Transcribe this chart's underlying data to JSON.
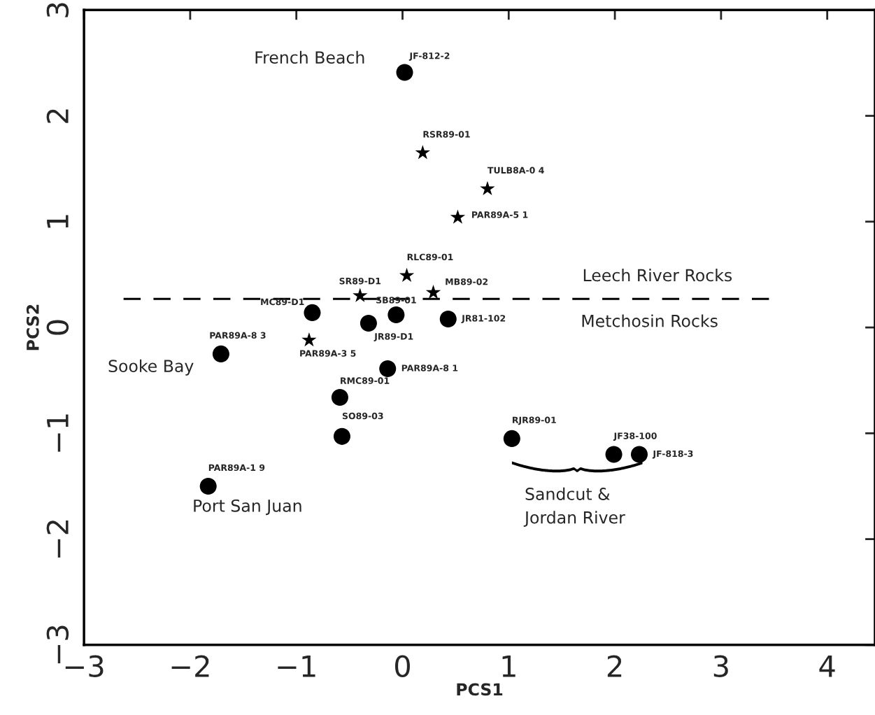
{
  "chart_data": {
    "type": "scatter",
    "xlabel": "PCS1",
    "ylabel": "PCS2",
    "xlim": [
      -3,
      4.45
    ],
    "ylim": [
      -3,
      3
    ],
    "xticks": [
      -3,
      -2,
      -1,
      0,
      1,
      2,
      3,
      4
    ],
    "yticks": [
      -3,
      -2,
      -1,
      0,
      1,
      2,
      3
    ],
    "grid": false,
    "legend": false,
    "series": [
      {
        "color": "#000000",
        "marker": "circle",
        "x": [
          0.02,
          -0.85,
          -0.06,
          -0.32,
          0.43,
          -1.71,
          -0.14,
          -0.59,
          -0.57,
          1.03,
          1.99,
          2.23,
          -1.83
        ],
        "values": [
          2.41,
          0.14,
          0.12,
          0.04,
          0.08,
          -0.25,
          -0.39,
          -0.66,
          -1.03,
          -1.05,
          -1.2,
          -1.2,
          -1.5
        ],
        "value_labels": [
          "JF-812-2",
          "MC89-D1",
          "SB89-01",
          "JR89-D1",
          "JR81-102",
          "PAR89A-8 3",
          "PAR89A-8 1",
          "RMC89-01",
          "SO89-03",
          "RJR89-01",
          "JF38-100",
          "JF-818-3",
          "PAR89A-1 9"
        ]
      },
      {
        "color": "#000000",
        "marker": "star",
        "x": [
          0.19,
          0.8,
          0.52,
          0.04,
          -0.4,
          0.29,
          -0.88
        ],
        "values": [
          1.65,
          1.31,
          1.04,
          0.49,
          0.3,
          0.33,
          -0.12
        ],
        "value_labels": [
          "RSR89-01",
          "TULB8A-0 4",
          "PAR89A-5 1",
          "RLC89-01",
          "SR89-D1",
          "MB89-02",
          "PAR89A-3 5"
        ]
      }
    ],
    "ref_lines": [
      {
        "axis": "y",
        "value": 0.27,
        "line_style": "dashed",
        "color": "#000000"
      }
    ],
    "annotations": [
      "French Beach",
      "Leech River Rocks",
      "Metchosin Rocks",
      "Sooke Bay",
      "Port San Juan",
      "Sandcut &\nJordan River"
    ]
  }
}
